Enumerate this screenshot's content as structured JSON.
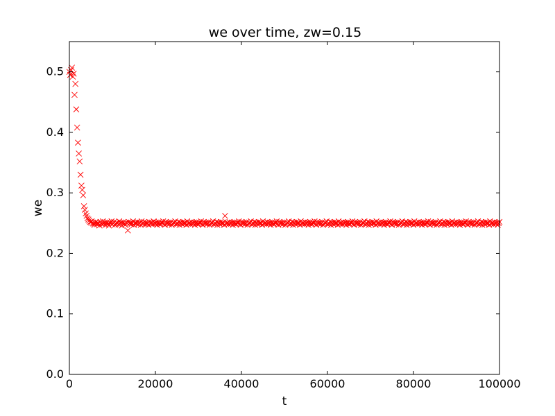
{
  "chart_data": {
    "type": "scatter",
    "title": "we over time, zw=0.15",
    "xlabel": "t",
    "ylabel": "we",
    "xlim": [
      0,
      100000
    ],
    "ylim": [
      0,
      0.55
    ],
    "xticks": [
      0,
      20000,
      40000,
      60000,
      80000,
      100000
    ],
    "xtick_labels": [
      "0",
      "20000",
      "40000",
      "60000",
      "80000",
      "100000"
    ],
    "yticks": [
      0.0,
      0.1,
      0.2,
      0.3,
      0.4,
      0.5
    ],
    "ytick_labels": [
      "0.0",
      "0.1",
      "0.2",
      "0.3",
      "0.4",
      "0.5"
    ],
    "grid": false,
    "marker": "x",
    "marker_color": "#ff0000",
    "series": [
      {
        "sampling_interval": 200,
        "x_start": 0,
        "x_end": 100000,
        "values": [
          0.5,
          0.495,
          0.503,
          0.507,
          0.492,
          0.497,
          0.462,
          0.48,
          0.438,
          0.408,
          0.383,
          0.365,
          0.352,
          0.33,
          0.312,
          0.305,
          0.296,
          0.278,
          0.272,
          0.266,
          0.262,
          0.258,
          0.256,
          0.254,
          0.252,
          0.251,
          0.253,
          0.25,
          0.249,
          0.247,
          0.25,
          0.252,
          0.248,
          0.251,
          0.249,
          0.246,
          0.252,
          0.25,
          0.248,
          0.253,
          0.249,
          0.251,
          0.247,
          0.25,
          0.252,
          0.249,
          0.246,
          0.251,
          0.25,
          0.253,
          0.248,
          0.25,
          0.252,
          0.247,
          0.249,
          0.251,
          0.25,
          0.248,
          0.253,
          0.249,
          0.251,
          0.246,
          0.25,
          0.252,
          0.249,
          0.247,
          0.251,
          0.25,
          0.238,
          0.252,
          0.249,
          0.251,
          0.248,
          0.25,
          0.253,
          0.247,
          0.25,
          0.251,
          0.249,
          0.252,
          0.248,
          0.25,
          0.251,
          0.247,
          0.253,
          0.249,
          0.25,
          0.252,
          0.248,
          0.251,
          0.249,
          0.25,
          0.247,
          0.252,
          0.25,
          0.249,
          0.251,
          0.248,
          0.253,
          0.25,
          0.249,
          0.251,
          0.247,
          0.25,
          0.252,
          0.249,
          0.248,
          0.251,
          0.25,
          0.253,
          0.249,
          0.247,
          0.252,
          0.25,
          0.249,
          0.251,
          0.248,
          0.25,
          0.252,
          0.247,
          0.249,
          0.251,
          0.25,
          0.253,
          0.248,
          0.25,
          0.249,
          0.252,
          0.247,
          0.251,
          0.25,
          0.248,
          0.252,
          0.249,
          0.251,
          0.25,
          0.247,
          0.253,
          0.249,
          0.25,
          0.251,
          0.248,
          0.252,
          0.25,
          0.249,
          0.251,
          0.247,
          0.25,
          0.252,
          0.249,
          0.248,
          0.251,
          0.25,
          0.253,
          0.249,
          0.247,
          0.252,
          0.25,
          0.249,
          0.251,
          0.248,
          0.25,
          0.252,
          0.247,
          0.249,
          0.251,
          0.25,
          0.253,
          0.248,
          0.25,
          0.249,
          0.252,
          0.247,
          0.251,
          0.25,
          0.248,
          0.252,
          0.249,
          0.251,
          0.25,
          0.247,
          0.262,
          0.249,
          0.25,
          0.251,
          0.248,
          0.252,
          0.25,
          0.249,
          0.251,
          0.247,
          0.25,
          0.252,
          0.249,
          0.248,
          0.251,
          0.25,
          0.253,
          0.249,
          0.247,
          0.252,
          0.25,
          0.249,
          0.251,
          0.248,
          0.25,
          0.252,
          0.247,
          0.249,
          0.251,
          0.25,
          0.253,
          0.248,
          0.25,
          0.249,
          0.252,
          0.247,
          0.251,
          0.25,
          0.248,
          0.252,
          0.249,
          0.251,
          0.25,
          0.247,
          0.253,
          0.249,
          0.25,
          0.251,
          0.248,
          0.252,
          0.25,
          0.249,
          0.251,
          0.247,
          0.25,
          0.252,
          0.249,
          0.248,
          0.251,
          0.25,
          0.253,
          0.249,
          0.247,
          0.252,
          0.25,
          0.249,
          0.251,
          0.248,
          0.25,
          0.252,
          0.247,
          0.249,
          0.251,
          0.25,
          0.253,
          0.248,
          0.25,
          0.249,
          0.252,
          0.247,
          0.251,
          0.25,
          0.248,
          0.252,
          0.249,
          0.251,
          0.25,
          0.247,
          0.253,
          0.249,
          0.25,
          0.251,
          0.248,
          0.252,
          0.25,
          0.249,
          0.251,
          0.247,
          0.25,
          0.252,
          0.249,
          0.248,
          0.251,
          0.25,
          0.253,
          0.249,
          0.247,
          0.252,
          0.25,
          0.249,
          0.251,
          0.248,
          0.25,
          0.252,
          0.247,
          0.249,
          0.251,
          0.25,
          0.253,
          0.248,
          0.25,
          0.249,
          0.252,
          0.247,
          0.251,
          0.25,
          0.248,
          0.252,
          0.249,
          0.251,
          0.25,
          0.247,
          0.253,
          0.249,
          0.25,
          0.251,
          0.248,
          0.252,
          0.25,
          0.249,
          0.251,
          0.247,
          0.25,
          0.252,
          0.249,
          0.248,
          0.251,
          0.25,
          0.253,
          0.249,
          0.247,
          0.252,
          0.25,
          0.249,
          0.251,
          0.248,
          0.25,
          0.252,
          0.247,
          0.249,
          0.251,
          0.25,
          0.253,
          0.248,
          0.25,
          0.249,
          0.252,
          0.247,
          0.251,
          0.25,
          0.248,
          0.252,
          0.249,
          0.251,
          0.25,
          0.247,
          0.253,
          0.249,
          0.25,
          0.251,
          0.248,
          0.252,
          0.25,
          0.249,
          0.251,
          0.247,
          0.25,
          0.252,
          0.249,
          0.248,
          0.251,
          0.25,
          0.253,
          0.249,
          0.247,
          0.252,
          0.25,
          0.249,
          0.251,
          0.248,
          0.25,
          0.252,
          0.247,
          0.249,
          0.251,
          0.25,
          0.253,
          0.248,
          0.25,
          0.249,
          0.252,
          0.247,
          0.251,
          0.25,
          0.248,
          0.252,
          0.249,
          0.251,
          0.25,
          0.247,
          0.253,
          0.249,
          0.25,
          0.251,
          0.248,
          0.252,
          0.25,
          0.249,
          0.251,
          0.247,
          0.25,
          0.252,
          0.249,
          0.248,
          0.251,
          0.25,
          0.253,
          0.249,
          0.247,
          0.252,
          0.25,
          0.249,
          0.251,
          0.248,
          0.25,
          0.252,
          0.247,
          0.249,
          0.251,
          0.25,
          0.253,
          0.248,
          0.25,
          0.249,
          0.252,
          0.247,
          0.251,
          0.25,
          0.248,
          0.252,
          0.249,
          0.251,
          0.25,
          0.247,
          0.253,
          0.249,
          0.25,
          0.251,
          0.248,
          0.252,
          0.25,
          0.249,
          0.251,
          0.247,
          0.25,
          0.252,
          0.249,
          0.248,
          0.251,
          0.25,
          0.253,
          0.249,
          0.247,
          0.252,
          0.25,
          0.249,
          0.251,
          0.248,
          0.25,
          0.252,
          0.247,
          0.249,
          0.251,
          0.25,
          0.253,
          0.248,
          0.25,
          0.249,
          0.252,
          0.247,
          0.251,
          0.25,
          0.248,
          0.252,
          0.249,
          0.251,
          0.25,
          0.247,
          0.253,
          0.249,
          0.25,
          0.251,
          0.248,
          0.252,
          0.25,
          0.249,
          0.251,
          0.247,
          0.25,
          0.252
        ]
      }
    ]
  }
}
